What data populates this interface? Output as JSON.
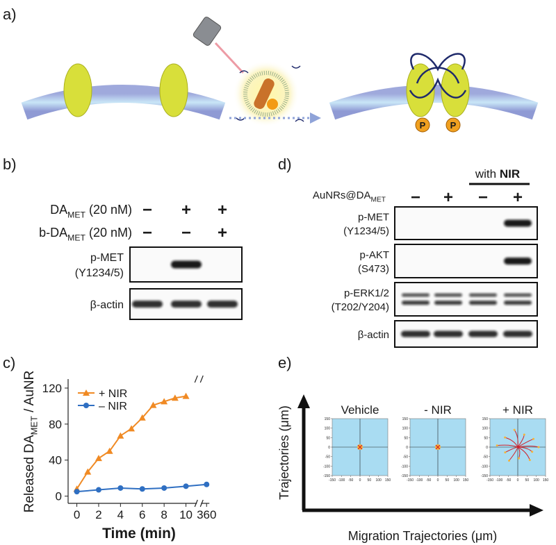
{
  "figure": {
    "panel_labels": [
      "a)",
      "b)",
      "c)",
      "d)",
      "e)"
    ],
    "panel_b": {
      "rows": [
        {
          "label": {
            "prefix": "DA",
            "sub": "MET",
            "suffix": " (20 nM)"
          },
          "signs": [
            "−",
            "+",
            "+"
          ]
        },
        {
          "label": {
            "prefix": "b-DA",
            "sub": "MET",
            "suffix": " (20 nM)"
          },
          "signs": [
            "−",
            "−",
            "+"
          ]
        }
      ],
      "blots": [
        {
          "lines": [
            "p-MET",
            "(Y1234/5)"
          ]
        },
        {
          "lines": [
            "β-actin"
          ]
        }
      ]
    },
    "panel_d": {
      "header": {
        "prefix": "with ",
        "bold": "NIR"
      },
      "row": {
        "label": {
          "prefix": "AuNRs@DA",
          "sub": "MET"
        },
        "signs": [
          "−",
          "+",
          "−",
          "+"
        ]
      },
      "blots": [
        {
          "lines": [
            "p-MET",
            "(Y1234/5)"
          ]
        },
        {
          "lines": [
            "p-AKT",
            "(S473)"
          ]
        },
        {
          "lines": [
            "p-ERK1/2",
            "(T202/Y204)"
          ]
        },
        {
          "lines": [
            "β-actin"
          ]
        }
      ]
    },
    "panel_e": {
      "y_axis_label": "Trajectories (μm)",
      "x_axis_label": "Migration Trajectories (μm)",
      "plots": [
        {
          "title": "Vehicle"
        },
        {
          "title": "- NIR"
        },
        {
          "title": "+ NIR"
        }
      ],
      "ticks": [
        -150,
        -100,
        -50,
        0,
        50,
        100,
        150
      ]
    }
  },
  "chart_data": {
    "type": "line",
    "y_label": {
      "prefix": "Released DA",
      "sub": "MET",
      "suffix": " / AuNR"
    },
    "x_label": "Time (min)",
    "xlim": [
      -0.8,
      360.5
    ],
    "axis_break": [
      11,
      359
    ],
    "xticks": [
      0,
      2,
      4,
      6,
      8,
      10,
      360
    ],
    "ylim": [
      -8,
      130
    ],
    "yticks": [
      0,
      40,
      80,
      120
    ],
    "legend": "upper left",
    "series": [
      {
        "name": "+ NIR",
        "color": "#f08a24",
        "marker": "triangle",
        "x": [
          0,
          1,
          2,
          3,
          4,
          5,
          6,
          7,
          8,
          9,
          10
        ],
        "values": [
          8,
          27,
          42,
          50,
          67,
          75,
          87,
          101,
          105,
          109,
          111
        ]
      },
      {
        "name": "– NIR",
        "color": "#2f6fc2",
        "marker": "circle",
        "x": [
          0,
          2,
          4,
          6,
          8,
          10,
          360
        ],
        "values": [
          5,
          7,
          9,
          8,
          9,
          11,
          13
        ]
      }
    ]
  }
}
